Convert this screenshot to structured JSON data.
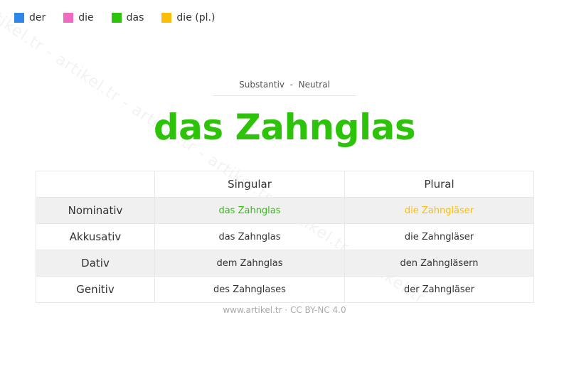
{
  "watermark": "artikel.tr - artikel.tr - artikel.tr - artikel.tr - artikel.tr - artikel.tr",
  "legend": [
    {
      "label": "der",
      "color": "#2f86e6"
    },
    {
      "label": "die",
      "color": "#ef6bc1"
    },
    {
      "label": "das",
      "color": "#2dc30a"
    },
    {
      "label": "die (pl.)",
      "color": "#fbbd08"
    }
  ],
  "subtitle": "Substantiv  -  Neutral",
  "title": "das Zahnglas",
  "title_color": "#2dc30a",
  "table": {
    "headers": [
      "",
      "Singular",
      "Plural"
    ],
    "rows": [
      {
        "case": "Nominativ",
        "singular": "das Zahnglas",
        "plural": "die Zahngläser"
      },
      {
        "case": "Akkusativ",
        "singular": "das Zahnglas",
        "plural": "die Zahngläser"
      },
      {
        "case": "Dativ",
        "singular": "dem Zahnglas",
        "plural": "den Zahngläsern"
      },
      {
        "case": "Genitiv",
        "singular": "des Zahnglases",
        "plural": "der Zahngläser"
      }
    ]
  },
  "footer": "www.artikel.tr · CC BY-NC 4.0"
}
